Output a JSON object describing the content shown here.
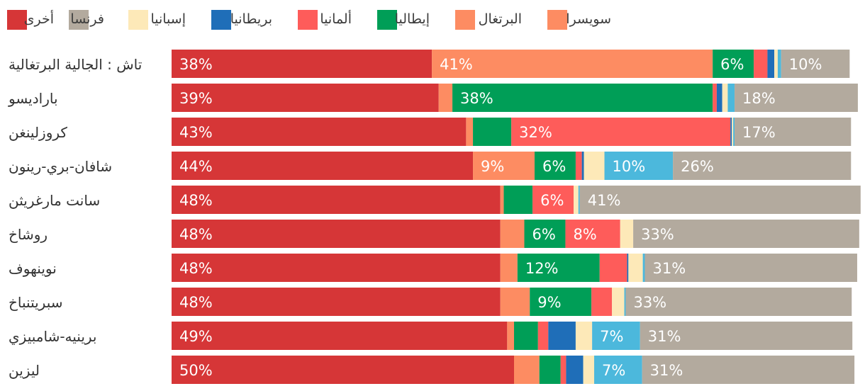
{
  "chart_data": {
    "type": "bar",
    "orientation": "horizontal",
    "stacked": true,
    "normalized_to": 100,
    "unit": "%",
    "legend": [
      {
        "key": "other",
        "label": "أخرى",
        "color": "#d63637"
      },
      {
        "key": "france",
        "label": "فرنسا",
        "color": "#b3aa9e"
      },
      {
        "key": "spain",
        "label": "إسبانيا",
        "color": "#fde9b8"
      },
      {
        "key": "britain",
        "label": "بريطانيا",
        "color": "#1f6eb8"
      },
      {
        "key": "germany",
        "label": "ألمانيا",
        "color": "#fe5c5a"
      },
      {
        "key": "italy",
        "label": "إيطاليا",
        "color": "#009e57"
      },
      {
        "key": "portugal",
        "label": "البرتغال",
        "color": "#fd8c62"
      },
      {
        "key": "switzerland",
        "label": "سويسرا",
        "color": "#fd8c62"
      }
    ],
    "stack_order": [
      "other",
      "portugal",
      "italy",
      "germany",
      "britain",
      "spain",
      "blue",
      "france"
    ],
    "stack_colors": {
      "other": "#d63637",
      "portugal": "#fd8c62",
      "italy": "#009e57",
      "germany": "#fe5c5a",
      "britain": "#1f6eb8",
      "spain": "#fde9b8",
      "blue": "#4cb8dc",
      "france": "#b3aa9e"
    },
    "categories": [
      "تاش : الجالية البرتغالية",
      "بارادیسو",
      "كروزلينغن",
      "شافان-بري-رينون",
      "سانت مارغريثن",
      "روشاخ",
      "نوينهوف",
      "سبريتنباخ",
      "برينيه-شامبيزي",
      "ليزين"
    ],
    "series": [
      {
        "name": "other",
        "values": [
          38,
          39,
          43,
          44,
          48,
          48,
          48,
          48,
          49,
          50
        ]
      },
      {
        "name": "portugal",
        "values": [
          41,
          2,
          1,
          9,
          0.5,
          3.5,
          2.5,
          4.3,
          1,
          3.7
        ]
      },
      {
        "name": "italy",
        "values": [
          6,
          38,
          5.6,
          6,
          4.2,
          6,
          12,
          9,
          3.5,
          3.1
        ]
      },
      {
        "name": "germany",
        "values": [
          2,
          0.6,
          32,
          0.9,
          6,
          8,
          4,
          3,
          1.5,
          0.8
        ]
      },
      {
        "name": "britain",
        "values": [
          1,
          0.8,
          0.2,
          0.3,
          0,
          0,
          0.2,
          0,
          4,
          2.5
        ]
      },
      {
        "name": "spain",
        "values": [
          0.5,
          0.8,
          0.2,
          3,
          0.7,
          1.9,
          2.1,
          1.8,
          2.4,
          1.6
        ]
      },
      {
        "name": "blue",
        "values": [
          0.5,
          1,
          0.2,
          10,
          0.2,
          0,
          0.3,
          0.2,
          7,
          7
        ]
      },
      {
        "name": "france",
        "values": [
          10,
          18,
          17,
          26,
          41,
          33,
          31,
          33,
          31,
          31
        ]
      }
    ],
    "labels": [
      [
        {
          "series": "other",
          "text": "38%"
        },
        {
          "series": "portugal",
          "text": "41%"
        },
        {
          "series": "italy",
          "text": "6%"
        },
        {
          "series": "france",
          "text": "10%"
        }
      ],
      [
        {
          "series": "other",
          "text": "39%"
        },
        {
          "series": "italy",
          "text": "38%"
        },
        {
          "series": "france",
          "text": "18%"
        }
      ],
      [
        {
          "series": "other",
          "text": "43%"
        },
        {
          "series": "germany",
          "text": "32%"
        },
        {
          "series": "france",
          "text": "17%"
        }
      ],
      [
        {
          "series": "other",
          "text": "44%"
        },
        {
          "series": "portugal",
          "text": "9%"
        },
        {
          "series": "italy",
          "text": "6%"
        },
        {
          "series": "blue",
          "text": "10%"
        },
        {
          "series": "france",
          "text": "26%"
        }
      ],
      [
        {
          "series": "other",
          "text": "48%"
        },
        {
          "series": "germany",
          "text": "6%"
        },
        {
          "series": "france",
          "text": "41%"
        }
      ],
      [
        {
          "series": "other",
          "text": "48%"
        },
        {
          "series": "italy",
          "text": "6%"
        },
        {
          "series": "germany",
          "text": "8%"
        },
        {
          "series": "france",
          "text": "33%"
        }
      ],
      [
        {
          "series": "other",
          "text": "48%"
        },
        {
          "series": "italy",
          "text": "12%"
        },
        {
          "series": "france",
          "text": "31%"
        }
      ],
      [
        {
          "series": "other",
          "text": "48%"
        },
        {
          "series": "italy",
          "text": "9%"
        },
        {
          "series": "france",
          "text": "33%"
        }
      ],
      [
        {
          "series": "other",
          "text": "49%"
        },
        {
          "series": "blue",
          "text": "7%"
        },
        {
          "series": "france",
          "text": "31%"
        }
      ],
      [
        {
          "series": "other",
          "text": "50%"
        },
        {
          "series": "blue",
          "text": "7%"
        },
        {
          "series": "france",
          "text": "31%"
        }
      ]
    ],
    "title": "",
    "xlabel": "",
    "ylabel": "",
    "xlim": [
      0,
      100
    ],
    "grid": false,
    "legend_position": "top"
  }
}
